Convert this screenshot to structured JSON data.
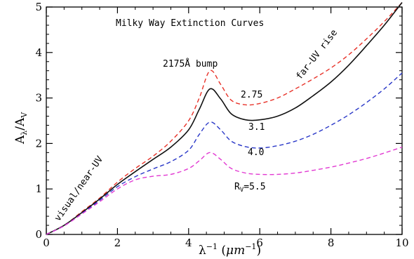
{
  "chart_data": {
    "type": "line",
    "title": "Milky Way Extinction Curves",
    "xlabel": {
      "base": "λ",
      "sup1": "−1",
      "paren_open": " (",
      "mu": "μm",
      "sup2": "−1",
      "paren_close": ")"
    },
    "ylabel": {
      "a": "A",
      "a_sub": "λ",
      "slash": "/",
      "b": "A",
      "b_sub": "V"
    },
    "xlim": [
      0,
      10
    ],
    "ylim": [
      0,
      5
    ],
    "x_ticks": [
      "0",
      "2",
      "4",
      "6",
      "8",
      "10"
    ],
    "y_ticks": [
      "0",
      "1",
      "2",
      "3",
      "4",
      "5"
    ],
    "grid": false,
    "annotations": {
      "bump": "2175Å bump",
      "far_uv": "far-UV rise",
      "visual": "visual/near-UV",
      "rv_prefix": "R",
      "rv_sub": "V",
      "rv_value": "=5.5"
    },
    "series": [
      {
        "name": "2.75",
        "color": "#e8332a",
        "dash": true,
        "points": [
          [
            0,
            0
          ],
          [
            0.5,
            0.2
          ],
          [
            1,
            0.5
          ],
          [
            1.5,
            0.8
          ],
          [
            2,
            1.15
          ],
          [
            2.5,
            1.45
          ],
          [
            3,
            1.72
          ],
          [
            3.5,
            2.05
          ],
          [
            4,
            2.5
          ],
          [
            4.3,
            3.0
          ],
          [
            4.6,
            3.6
          ],
          [
            4.9,
            3.3
          ],
          [
            5.2,
            2.95
          ],
          [
            5.6,
            2.85
          ],
          [
            6,
            2.88
          ],
          [
            6.5,
            3.0
          ],
          [
            7,
            3.2
          ],
          [
            7.5,
            3.42
          ],
          [
            8,
            3.66
          ],
          [
            8.5,
            3.95
          ],
          [
            9,
            4.3
          ],
          [
            9.5,
            4.68
          ],
          [
            10,
            5.1
          ]
        ]
      },
      {
        "name": "3.1",
        "color": "#111111",
        "dash": false,
        "points": [
          [
            0,
            0
          ],
          [
            0.5,
            0.2
          ],
          [
            1,
            0.48
          ],
          [
            1.5,
            0.78
          ],
          [
            2,
            1.1
          ],
          [
            2.5,
            1.38
          ],
          [
            3,
            1.65
          ],
          [
            3.5,
            1.92
          ],
          [
            4,
            2.3
          ],
          [
            4.3,
            2.75
          ],
          [
            4.6,
            3.2
          ],
          [
            4.9,
            2.98
          ],
          [
            5.2,
            2.65
          ],
          [
            5.6,
            2.52
          ],
          [
            6,
            2.52
          ],
          [
            6.5,
            2.6
          ],
          [
            7,
            2.78
          ],
          [
            7.5,
            3.05
          ],
          [
            8,
            3.35
          ],
          [
            8.5,
            3.72
          ],
          [
            9,
            4.15
          ],
          [
            9.5,
            4.6
          ],
          [
            10,
            5.1
          ]
        ]
      },
      {
        "name": "4.0",
        "color": "#2a38c8",
        "dash": true,
        "points": [
          [
            0,
            0
          ],
          [
            0.5,
            0.19
          ],
          [
            1,
            0.46
          ],
          [
            1.5,
            0.75
          ],
          [
            2,
            1.05
          ],
          [
            2.5,
            1.27
          ],
          [
            3,
            1.44
          ],
          [
            3.5,
            1.6
          ],
          [
            4,
            1.85
          ],
          [
            4.3,
            2.2
          ],
          [
            4.6,
            2.47
          ],
          [
            4.9,
            2.3
          ],
          [
            5.2,
            2.05
          ],
          [
            5.6,
            1.93
          ],
          [
            6,
            1.9
          ],
          [
            6.5,
            1.95
          ],
          [
            7,
            2.05
          ],
          [
            7.5,
            2.2
          ],
          [
            8,
            2.4
          ],
          [
            8.5,
            2.63
          ],
          [
            9,
            2.9
          ],
          [
            9.5,
            3.2
          ],
          [
            10,
            3.55
          ]
        ]
      },
      {
        "name": "5.5",
        "color": "#e23ad2",
        "dash": true,
        "points": [
          [
            0,
            0
          ],
          [
            0.5,
            0.19
          ],
          [
            1,
            0.45
          ],
          [
            1.5,
            0.72
          ],
          [
            2,
            1.0
          ],
          [
            2.5,
            1.2
          ],
          [
            3,
            1.28
          ],
          [
            3.5,
            1.32
          ],
          [
            4,
            1.45
          ],
          [
            4.3,
            1.62
          ],
          [
            4.6,
            1.8
          ],
          [
            4.9,
            1.65
          ],
          [
            5.2,
            1.45
          ],
          [
            5.6,
            1.35
          ],
          [
            6,
            1.32
          ],
          [
            6.5,
            1.32
          ],
          [
            7,
            1.35
          ],
          [
            7.5,
            1.41
          ],
          [
            8,
            1.48
          ],
          [
            8.5,
            1.57
          ],
          [
            9,
            1.67
          ],
          [
            9.5,
            1.79
          ],
          [
            10,
            1.92
          ]
        ]
      }
    ]
  }
}
